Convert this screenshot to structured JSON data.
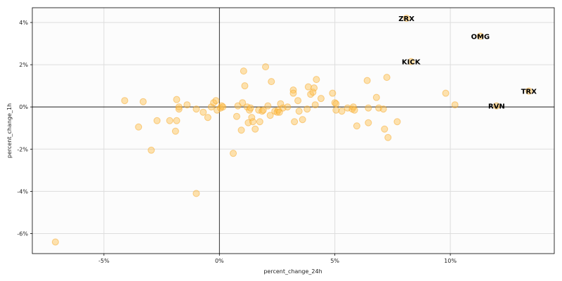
{
  "chart_data": {
    "type": "scatter",
    "xlabel": "percent_change_24h",
    "ylabel": "percent_change_1h",
    "xlim": [
      -8.1,
      14.5
    ],
    "ylim": [
      -6.95,
      4.7
    ],
    "xticks": [
      -5,
      0,
      5,
      10
    ],
    "xtick_labels": [
      "-5%",
      "0%",
      "5%",
      "10%"
    ],
    "yticks": [
      -6,
      -4,
      -2,
      0,
      2,
      4
    ],
    "ytick_labels": [
      "-6%",
      "-4%",
      "-2%",
      "0%",
      "2%",
      "4%"
    ],
    "grid": true,
    "colors": {
      "point": "#ffc04d",
      "point_edge": "#f5a623",
      "background": "#fcfcfc"
    },
    "labeled_points": [
      {
        "label": "ZRX",
        "x": 8.1,
        "y": 4.2
      },
      {
        "label": "OMG",
        "x": 11.3,
        "y": 3.35
      },
      {
        "label": "KICK",
        "x": 8.3,
        "y": 2.15
      },
      {
        "label": "TRX",
        "x": 13.4,
        "y": 0.75
      },
      {
        "label": "RVN",
        "x": 12.0,
        "y": 0.05
      }
    ],
    "points": [
      {
        "x": -7.1,
        "y": -6.4
      },
      {
        "x": -1.0,
        "y": -4.1
      },
      {
        "x": -2.95,
        "y": -2.05
      },
      {
        "x": -4.1,
        "y": 0.3
      },
      {
        "x": -3.3,
        "y": 0.25
      },
      {
        "x": -3.5,
        "y": -0.95
      },
      {
        "x": -2.7,
        "y": -0.65
      },
      {
        "x": -2.15,
        "y": -0.65
      },
      {
        "x": -1.9,
        "y": -1.15
      },
      {
        "x": -1.85,
        "y": -0.65
      },
      {
        "x": -1.85,
        "y": 0.35
      },
      {
        "x": -1.75,
        "y": 0.0
      },
      {
        "x": -1.75,
        "y": -0.1
      },
      {
        "x": -1.4,
        "y": 0.1
      },
      {
        "x": -1.0,
        "y": -0.1
      },
      {
        "x": -0.7,
        "y": -0.25
      },
      {
        "x": -0.5,
        "y": -0.5
      },
      {
        "x": -0.35,
        "y": 0.0
      },
      {
        "x": -0.25,
        "y": 0.2
      },
      {
        "x": -0.15,
        "y": 0.3
      },
      {
        "x": -0.1,
        "y": -0.15
      },
      {
        "x": 0.05,
        "y": -0.05
      },
      {
        "x": 0.1,
        "y": 0.05
      },
      {
        "x": 0.15,
        "y": 0.0
      },
      {
        "x": 0.6,
        "y": -2.2
      },
      {
        "x": 0.75,
        "y": -0.45
      },
      {
        "x": 0.8,
        "y": 0.05
      },
      {
        "x": 0.95,
        "y": -1.1
      },
      {
        "x": 1.0,
        "y": 0.2
      },
      {
        "x": 1.05,
        "y": 1.7
      },
      {
        "x": 1.1,
        "y": 1.0
      },
      {
        "x": 1.2,
        "y": 0.0
      },
      {
        "x": 1.25,
        "y": -0.75
      },
      {
        "x": 1.3,
        "y": -0.15
      },
      {
        "x": 1.35,
        "y": -0.05
      },
      {
        "x": 1.4,
        "y": -0.5
      },
      {
        "x": 1.45,
        "y": -0.7
      },
      {
        "x": 1.55,
        "y": -1.05
      },
      {
        "x": 1.7,
        "y": -0.15
      },
      {
        "x": 1.75,
        "y": -0.7
      },
      {
        "x": 1.85,
        "y": -0.2
      },
      {
        "x": 1.9,
        "y": -0.15
      },
      {
        "x": 2.0,
        "y": 1.9
      },
      {
        "x": 2.1,
        "y": 0.05
      },
      {
        "x": 2.2,
        "y": -0.4
      },
      {
        "x": 2.25,
        "y": 1.2
      },
      {
        "x": 2.4,
        "y": -0.2
      },
      {
        "x": 2.5,
        "y": -0.25
      },
      {
        "x": 2.55,
        "y": -0.15
      },
      {
        "x": 2.6,
        "y": -0.25
      },
      {
        "x": 2.65,
        "y": 0.15
      },
      {
        "x": 2.75,
        "y": -0.05
      },
      {
        "x": 2.95,
        "y": 0.0
      },
      {
        "x": 3.2,
        "y": 0.8
      },
      {
        "x": 3.2,
        "y": 0.65
      },
      {
        "x": 3.25,
        "y": -0.7
      },
      {
        "x": 3.4,
        "y": 0.3
      },
      {
        "x": 3.45,
        "y": -0.2
      },
      {
        "x": 3.6,
        "y": -0.6
      },
      {
        "x": 3.8,
        "y": -0.1
      },
      {
        "x": 3.85,
        "y": 0.95
      },
      {
        "x": 3.95,
        "y": 0.6
      },
      {
        "x": 4.05,
        "y": 0.7
      },
      {
        "x": 4.1,
        "y": 0.9
      },
      {
        "x": 4.15,
        "y": 0.1
      },
      {
        "x": 4.2,
        "y": 1.3
      },
      {
        "x": 4.4,
        "y": 0.4
      },
      {
        "x": 4.9,
        "y": 0.65
      },
      {
        "x": 5.0,
        "y": 0.2
      },
      {
        "x": 5.05,
        "y": 0.15
      },
      {
        "x": 5.05,
        "y": -0.15
      },
      {
        "x": 5.3,
        "y": -0.2
      },
      {
        "x": 5.55,
        "y": -0.05
      },
      {
        "x": 5.75,
        "y": -0.1
      },
      {
        "x": 5.8,
        "y": 0.0
      },
      {
        "x": 5.85,
        "y": -0.15
      },
      {
        "x": 5.95,
        "y": -0.9
      },
      {
        "x": 6.4,
        "y": 1.25
      },
      {
        "x": 6.45,
        "y": -0.05
      },
      {
        "x": 6.45,
        "y": -0.75
      },
      {
        "x": 6.8,
        "y": 0.45
      },
      {
        "x": 6.9,
        "y": -0.05
      },
      {
        "x": 7.1,
        "y": -0.1
      },
      {
        "x": 7.15,
        "y": -1.05
      },
      {
        "x": 7.25,
        "y": 1.4
      },
      {
        "x": 7.3,
        "y": -1.45
      },
      {
        "x": 7.7,
        "y": -0.7
      },
      {
        "x": 8.1,
        "y": 4.2
      },
      {
        "x": 8.3,
        "y": 2.15
      },
      {
        "x": 9.8,
        "y": 0.65
      },
      {
        "x": 10.2,
        "y": 0.1
      },
      {
        "x": 11.3,
        "y": 3.35
      },
      {
        "x": 12.0,
        "y": 0.05
      },
      {
        "x": 13.4,
        "y": 0.75
      }
    ]
  }
}
